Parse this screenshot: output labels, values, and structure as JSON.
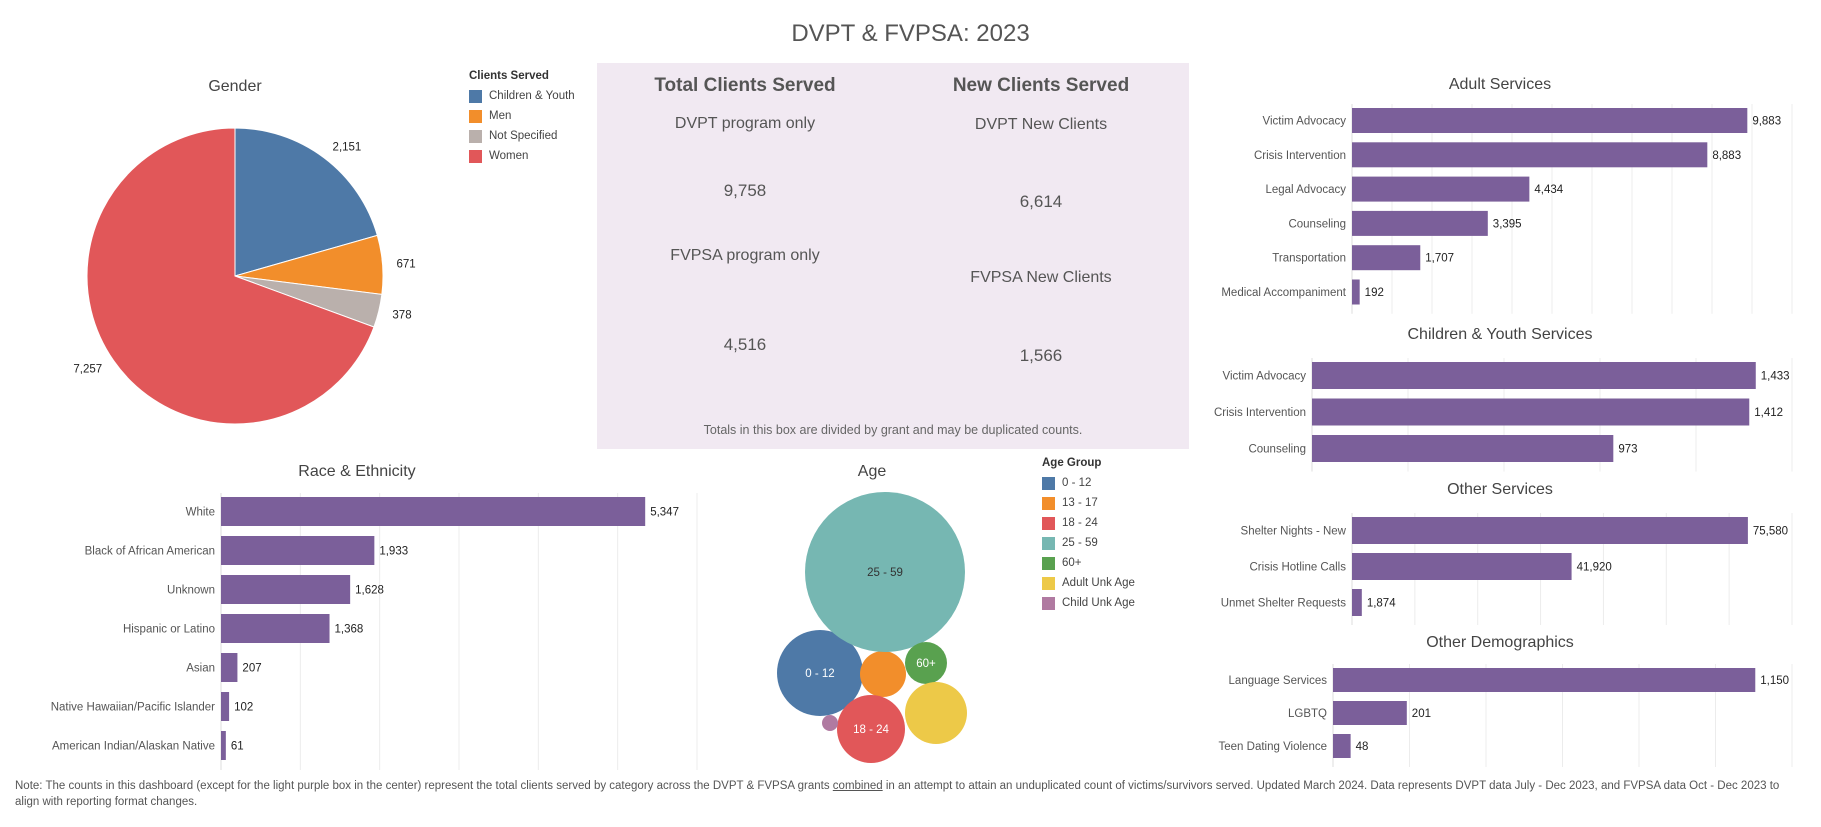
{
  "page": {
    "title": "DVPT & FVPSA: 2023",
    "footnote_pre": "Note: The counts in this dashboard (except for the light purple box in the center) represent the total clients served by category across the DVPT & FVPSA grants ",
    "footnote_underlined": "combined",
    "footnote_post": " in an attempt to attain an unduplicated count of victims/survivors served. Updated March 2024. Data represents DVPT data July - Dec 2023, and FVPSA data Oct - Dec 2023 to align with reporting format changes."
  },
  "summary_box": {
    "total_header": "Total Clients Served",
    "new_header": "New Clients Served",
    "dvpt_label": "DVPT program only",
    "dvpt_value": "9,758",
    "fvpsa_label": "FVPSA program only",
    "fvpsa_value": "4,516",
    "dvpt_new_label": "DVPT New Clients",
    "dvpt_new_value": "6,614",
    "fvpsa_new_label": "FVPSA New Clients",
    "fvpsa_new_value": "1,566",
    "note": "Totals in this box are divided by grant and may be duplicated counts."
  },
  "colors": {
    "bar": "#7b5f9a",
    "grid": "#ececec",
    "box_bg": "#f1e9f2"
  },
  "chart_data": [
    {
      "id": "gender",
      "type": "pie",
      "title": "Gender",
      "legend_title": "Clients Served",
      "legend_position": "right",
      "slices": [
        {
          "label": "Children & Youth",
          "value": 2151,
          "value_label": "2,151",
          "color": "#4e79a7"
        },
        {
          "label": "Men",
          "value": 671,
          "value_label": "671",
          "color": "#f28e2b"
        },
        {
          "label": "Not Specified",
          "value": 378,
          "value_label": "378",
          "color": "#bab0ac"
        },
        {
          "label": "Women",
          "value": 7257,
          "value_label": "7,257",
          "color": "#e15759"
        }
      ]
    },
    {
      "id": "race",
      "type": "bar",
      "orientation": "horizontal",
      "title": "Race & Ethnicity",
      "categories": [
        "White",
        "Black of African American",
        "Unknown",
        "Hispanic or Latino",
        "Asian",
        "Native Hawaiian/Pacific Islander",
        "American Indian/Alaskan Native"
      ],
      "values": [
        5347,
        1933,
        1628,
        1368,
        207,
        102,
        61
      ],
      "value_labels": [
        "5,347",
        "1,933",
        "1,628",
        "1,368",
        "207",
        "102",
        "61"
      ],
      "xlim": [
        0,
        6000
      ],
      "grid": true
    },
    {
      "id": "age",
      "type": "bubble",
      "title": "Age",
      "legend_title": "Age Group",
      "legend_position": "right",
      "groups": [
        {
          "label": "0 - 12",
          "color": "#4e79a7",
          "show_label": true
        },
        {
          "label": "13 - 17",
          "color": "#f28e2b",
          "show_label": false
        },
        {
          "label": "18 - 24",
          "color": "#e15759",
          "show_label": true
        },
        {
          "label": "25 - 59",
          "color": "#76b7b2",
          "show_label": true
        },
        {
          "label": "60+",
          "color": "#59a14f",
          "show_label": true
        },
        {
          "label": "Adult Unk Age",
          "color": "#edc948",
          "show_label": false
        },
        {
          "label": "Child Unk Age",
          "color": "#b07aa1",
          "show_label": false
        }
      ]
    },
    {
      "id": "adult",
      "type": "bar",
      "orientation": "horizontal",
      "title": "Adult Services",
      "categories": [
        "Victim Advocacy",
        "Crisis Intervention",
        "Legal Advocacy",
        "Counseling",
        "Transportation",
        "Medical Accompaniment"
      ],
      "values": [
        9883,
        8883,
        4434,
        3395,
        1707,
        192
      ],
      "value_labels": [
        "9,883",
        "8,883",
        "4,434",
        "3,395",
        "1,707",
        "192"
      ],
      "xlim": [
        0,
        11000
      ],
      "grid": true
    },
    {
      "id": "children",
      "type": "bar",
      "orientation": "horizontal",
      "title": "Children & Youth Services",
      "categories": [
        "Victim Advocacy",
        "Crisis Intervention",
        "Counseling"
      ],
      "values": [
        1433,
        1412,
        973
      ],
      "value_labels": [
        "1,433",
        "1,412",
        "973"
      ],
      "xlim": [
        0,
        1550
      ],
      "grid": true
    },
    {
      "id": "other",
      "type": "bar",
      "orientation": "horizontal",
      "title": "Other Services",
      "categories": [
        "Shelter Nights - New",
        "Crisis Hotline Calls",
        "Unmet Shelter Requests"
      ],
      "values": [
        75580,
        41920,
        1874
      ],
      "value_labels": [
        "75,580",
        "41,920",
        "1,874"
      ],
      "xlim": [
        0,
        84000
      ],
      "grid": true
    },
    {
      "id": "demo",
      "type": "bar",
      "orientation": "horizontal",
      "title": "Other Demographics",
      "categories": [
        "Language Services",
        "LGBTQ",
        "Teen Dating Violence"
      ],
      "values": [
        1150,
        201,
        48
      ],
      "value_labels": [
        "1,150",
        "201",
        "48"
      ],
      "xlim": [
        0,
        1250
      ],
      "grid": true
    }
  ]
}
